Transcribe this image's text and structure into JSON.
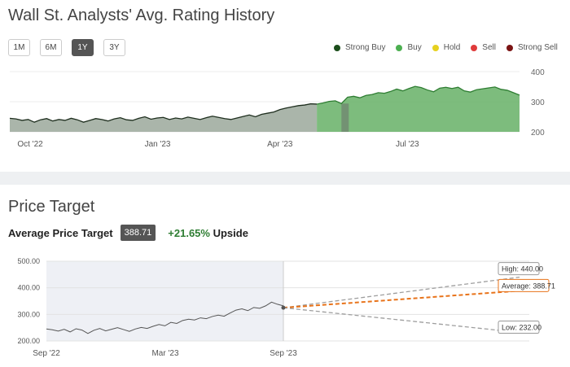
{
  "rating_section": {
    "title": "Wall St. Analysts' Avg. Rating History",
    "periods": [
      "1M",
      "6M",
      "1Y",
      "3Y"
    ],
    "active_period": "1Y",
    "legend": [
      {
        "label": "Strong Buy",
        "color": "#1b4d1b"
      },
      {
        "label": "Buy",
        "color": "#4caf50"
      },
      {
        "label": "Hold",
        "color": "#e6d11f"
      },
      {
        "label": "Sell",
        "color": "#e03b3b"
      },
      {
        "label": "Strong Sell",
        "color": "#7b1414"
      }
    ]
  },
  "price_target_section": {
    "title": "Price Target",
    "avg_label": "Average Price Target",
    "avg_value": "388.71",
    "upside_pct": "+21.65%",
    "upside_word": "Upside",
    "callouts": {
      "high": "High: 440.00",
      "average": "Average: 388.71",
      "low": "Low: 232.00"
    }
  },
  "colors": {
    "green_line": "#2e7d32",
    "green_fill": "#5aa85a",
    "grey_fill": "#8a9a8a",
    "orange": "#e8731a",
    "dashed_grey": "#999999"
  },
  "chart_data": [
    {
      "type": "area",
      "title": "Wall St. Analysts' Avg. Rating History",
      "x_tick_labels": [
        "Oct '22",
        "Jan '23",
        "Apr '23",
        "Jul '23"
      ],
      "y_tick_labels": [
        "400",
        "300",
        "200"
      ],
      "ylim": [
        200,
        400
      ],
      "series": [
        {
          "name": "Price",
          "x": [
            0,
            3,
            6,
            9,
            12,
            15,
            18,
            21,
            24,
            27,
            30,
            33,
            36,
            39,
            42,
            45,
            48,
            51,
            54,
            57,
            60,
            63,
            66,
            69,
            72,
            75,
            78,
            81,
            84,
            87,
            90,
            93,
            96,
            99,
            102,
            105,
            108,
            111,
            114,
            117,
            120,
            123,
            126,
            129,
            132,
            135,
            138,
            141,
            144,
            147,
            150,
            153,
            156,
            159,
            162,
            165,
            168,
            171,
            174,
            177,
            180,
            183,
            186,
            189,
            192,
            195,
            198,
            201,
            204,
            207,
            210,
            213,
            216,
            219,
            222,
            225,
            228,
            231,
            234,
            237,
            240,
            243,
            246,
            249
          ],
          "values": [
            245,
            243,
            238,
            241,
            232,
            240,
            244,
            236,
            241,
            238,
            245,
            240,
            232,
            238,
            244,
            241,
            236,
            243,
            247,
            240,
            238,
            245,
            250,
            242,
            246,
            248,
            241,
            246,
            243,
            249,
            245,
            241,
            247,
            252,
            248,
            244,
            241,
            246,
            251,
            256,
            250,
            258,
            262,
            266,
            274,
            279,
            283,
            287,
            289,
            293,
            292,
            296,
            301,
            303,
            294,
            315,
            318,
            313,
            321,
            324,
            330,
            328,
            334,
            342,
            336,
            344,
            351,
            347,
            339,
            333,
            345,
            348,
            344,
            348,
            336,
            332,
            340,
            343,
            346,
            349,
            341,
            338,
            330,
            322
          ]
        }
      ],
      "grey_band_x": 150
    },
    {
      "type": "line",
      "title": "Price Target",
      "x_tick_labels": [
        "Sep '22",
        "Mar '23",
        "Sep '23"
      ],
      "y_tick_labels": [
        "500.00",
        "400.00",
        "300.00",
        "200.00"
      ],
      "ylim": [
        200,
        500
      ],
      "series": [
        {
          "name": "Price",
          "x": [
            0,
            3,
            6,
            9,
            12,
            15,
            18,
            21,
            24,
            27,
            30,
            33,
            36,
            39,
            42,
            45,
            48,
            51,
            54,
            57,
            60,
            63,
            66,
            69,
            72,
            75,
            78,
            81,
            84,
            87,
            90,
            93,
            96,
            99,
            102,
            105,
            108,
            111,
            114,
            117,
            120
          ],
          "values": [
            245,
            242,
            237,
            244,
            234,
            246,
            241,
            228,
            240,
            247,
            238,
            244,
            250,
            243,
            236,
            245,
            251,
            247,
            255,
            262,
            257,
            270,
            266,
            277,
            282,
            279,
            287,
            284,
            292,
            297,
            293,
            305,
            316,
            321,
            314,
            326,
            323,
            332,
            346,
            338,
            332
          ]
        },
        {
          "name": "High",
          "start": 325,
          "end": 440
        },
        {
          "name": "Average",
          "start": 325,
          "end": 388.71
        },
        {
          "name": "Low",
          "start": 325,
          "end": 232
        }
      ]
    }
  ]
}
